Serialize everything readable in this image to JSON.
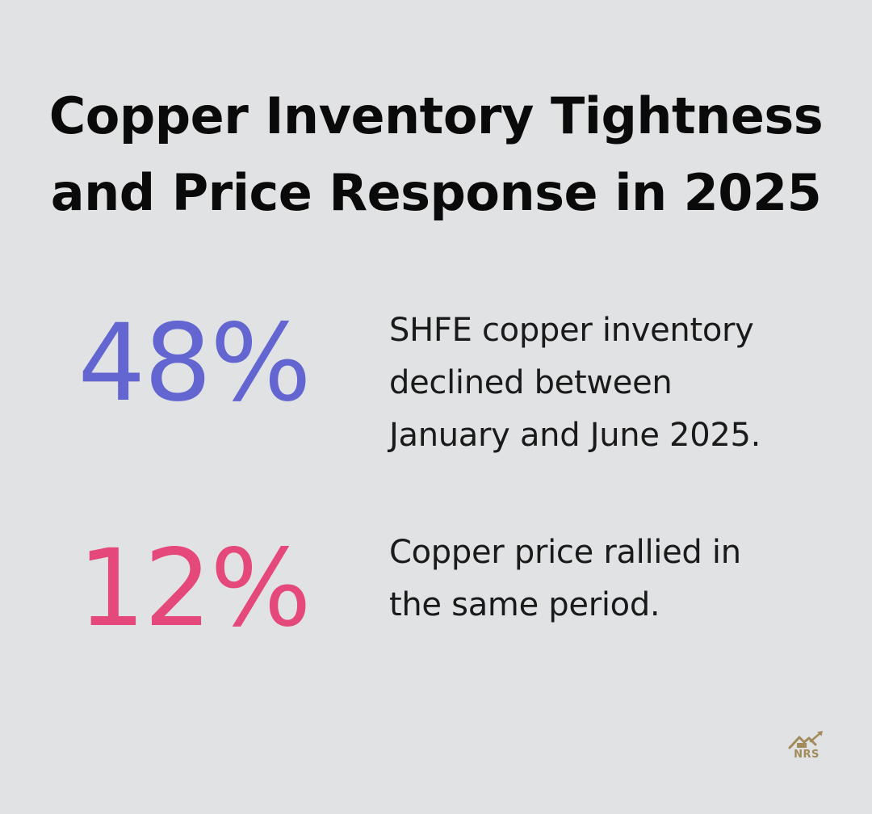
{
  "title": {
    "line1": "Copper Inventory Tightness",
    "line2": "and Price Response in 2025"
  },
  "stats": [
    {
      "value": "48%",
      "color": "#6366d1",
      "description_lines": [
        "SHFE copper inventory",
        "declined between",
        "January and June 2025."
      ]
    },
    {
      "value": "12%",
      "color": "#e5487a",
      "description_lines": [
        "Copper price rallied in",
        "the same period."
      ]
    }
  ],
  "logo": {
    "text": "NRS",
    "icon": "house-chart-arrow-icon",
    "color": "#a38a5a"
  }
}
